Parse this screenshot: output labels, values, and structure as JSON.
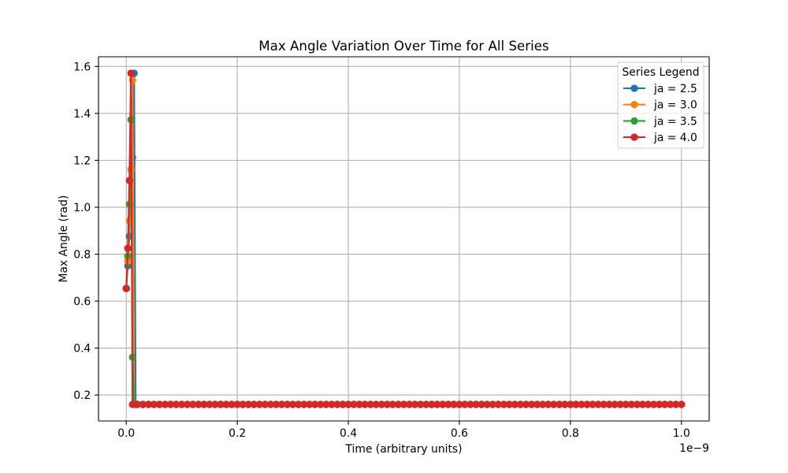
{
  "chart_data": {
    "type": "line",
    "title": "Max Angle Variation Over Time for All Series",
    "xlabel": "Time (arbitrary units)",
    "ylabel": "Max Angle (rad)",
    "x_offset_label": "1e−9",
    "xlim": [
      -0.05,
      1.05
    ],
    "ylim": [
      0.0895,
      1.6413
    ],
    "xticks": [
      0.0,
      0.2,
      0.4,
      0.6,
      0.8,
      1.0
    ],
    "xtick_labels": [
      "0.0",
      "0.2",
      "0.4",
      "0.6",
      "0.8",
      "1.0"
    ],
    "yticks": [
      0.2,
      0.4,
      0.6,
      0.8,
      1.0,
      1.2,
      1.4,
      1.6
    ],
    "ytick_labels": [
      "0.2",
      "0.4",
      "0.6",
      "0.8",
      "1.0",
      "1.2",
      "1.4",
      "1.6"
    ],
    "grid": true,
    "marker": "circle",
    "legend_title": "Series Legend",
    "legend_position": "upper right",
    "series": [
      {
        "name": "ja = 2.5",
        "color": "#1f77b4",
        "x": [
          0,
          0.0028,
          0.0057,
          0.0085,
          0.0113,
          0.0142,
          0.017,
          0.02,
          0.03,
          0.04,
          0.05,
          0.06,
          0.07,
          0.08,
          0.09,
          0.1,
          0.11,
          0.12,
          0.13,
          0.14,
          0.15,
          0.16,
          0.17,
          0.18,
          0.19,
          0.2,
          0.21,
          0.22,
          0.23,
          0.24,
          0.25,
          0.26,
          0.27,
          0.28,
          0.29,
          0.3,
          0.31,
          0.32,
          0.33,
          0.34,
          0.35,
          0.36,
          0.37,
          0.38,
          0.39,
          0.4,
          0.41,
          0.42,
          0.43,
          0.44,
          0.45,
          0.46,
          0.47,
          0.48,
          0.49,
          0.5,
          0.51,
          0.52,
          0.53,
          0.54,
          0.55,
          0.56,
          0.57,
          0.58,
          0.59,
          0.6,
          0.61,
          0.62,
          0.63,
          0.64,
          0.65,
          0.66,
          0.67,
          0.68,
          0.69,
          0.7,
          0.71,
          0.72,
          0.73,
          0.74,
          0.75,
          0.76,
          0.77,
          0.78,
          0.79,
          0.8,
          0.81,
          0.82,
          0.83,
          0.84,
          0.85,
          0.86,
          0.87,
          0.88,
          0.89,
          0.9,
          0.91,
          0.92,
          0.93,
          0.94,
          0.95,
          0.96,
          0.97,
          0.98,
          0.99,
          1.0
        ],
        "y": [
          0.654,
          0.75,
          0.876,
          1.114,
          1.212,
          1.571,
          0.16,
          0.16,
          0.16,
          0.16,
          0.16,
          0.16,
          0.16,
          0.16,
          0.16,
          0.16,
          0.16,
          0.16,
          0.16,
          0.16,
          0.16,
          0.16,
          0.16,
          0.16,
          0.16,
          0.16,
          0.16,
          0.16,
          0.16,
          0.16,
          0.16,
          0.16,
          0.16,
          0.16,
          0.16,
          0.16,
          0.16,
          0.16,
          0.16,
          0.16,
          0.16,
          0.16,
          0.16,
          0.16,
          0.16,
          0.16,
          0.16,
          0.16,
          0.16,
          0.16,
          0.16,
          0.16,
          0.16,
          0.16,
          0.16,
          0.16,
          0.16,
          0.16,
          0.16,
          0.16,
          0.16,
          0.16,
          0.16,
          0.16,
          0.16,
          0.16,
          0.16,
          0.16,
          0.16,
          0.16,
          0.16,
          0.16,
          0.16,
          0.16,
          0.16,
          0.16,
          0.16,
          0.16,
          0.16,
          0.16,
          0.16,
          0.16,
          0.16,
          0.16,
          0.16,
          0.16,
          0.16,
          0.16,
          0.16,
          0.16,
          0.16,
          0.16,
          0.16,
          0.16,
          0.16,
          0.16,
          0.16,
          0.16,
          0.16,
          0.16,
          0.16,
          0.16,
          0.16,
          0.16,
          0.16,
          0.16
        ]
      },
      {
        "name": "ja = 3.0",
        "color": "#ff7f0e",
        "x": [
          0,
          0.0028,
          0.0057,
          0.0085,
          0.0113,
          0.0142,
          0.02,
          0.03,
          0.04,
          0.05,
          0.06,
          0.07,
          0.08,
          0.09,
          0.1,
          0.11,
          0.12,
          0.13,
          0.14,
          0.15,
          0.16,
          0.17,
          0.18,
          0.19,
          0.2,
          0.21,
          0.22,
          0.23,
          0.24,
          0.25,
          0.26,
          0.27,
          0.28,
          0.29,
          0.3,
          0.31,
          0.32,
          0.33,
          0.34,
          0.35,
          0.36,
          0.37,
          0.38,
          0.39,
          0.4,
          0.41,
          0.42,
          0.43,
          0.44,
          0.45,
          0.46,
          0.47,
          0.48,
          0.49,
          0.5,
          0.51,
          0.52,
          0.53,
          0.54,
          0.55,
          0.56,
          0.57,
          0.58,
          0.59,
          0.6,
          0.61,
          0.62,
          0.63,
          0.64,
          0.65,
          0.66,
          0.67,
          0.68,
          0.69,
          0.7,
          0.71,
          0.72,
          0.73,
          0.74,
          0.75,
          0.76,
          0.77,
          0.78,
          0.79,
          0.8,
          0.81,
          0.82,
          0.83,
          0.84,
          0.85,
          0.86,
          0.87,
          0.88,
          0.89,
          0.9,
          0.91,
          0.92,
          0.93,
          0.94,
          0.95,
          0.96,
          0.97,
          0.98,
          0.99,
          1.0
        ],
        "y": [
          0.654,
          0.771,
          0.943,
          1.161,
          1.541,
          0.16,
          0.16,
          0.16,
          0.16,
          0.16,
          0.16,
          0.16,
          0.16,
          0.16,
          0.16,
          0.16,
          0.16,
          0.16,
          0.16,
          0.16,
          0.16,
          0.16,
          0.16,
          0.16,
          0.16,
          0.16,
          0.16,
          0.16,
          0.16,
          0.16,
          0.16,
          0.16,
          0.16,
          0.16,
          0.16,
          0.16,
          0.16,
          0.16,
          0.16,
          0.16,
          0.16,
          0.16,
          0.16,
          0.16,
          0.16,
          0.16,
          0.16,
          0.16,
          0.16,
          0.16,
          0.16,
          0.16,
          0.16,
          0.16,
          0.16,
          0.16,
          0.16,
          0.16,
          0.16,
          0.16,
          0.16,
          0.16,
          0.16,
          0.16,
          0.16,
          0.16,
          0.16,
          0.16,
          0.16,
          0.16,
          0.16,
          0.16,
          0.16,
          0.16,
          0.16,
          0.16,
          0.16,
          0.16,
          0.16,
          0.16,
          0.16,
          0.16,
          0.16,
          0.16,
          0.16,
          0.16,
          0.16,
          0.16,
          0.16,
          0.16,
          0.16,
          0.16,
          0.16,
          0.16,
          0.16,
          0.16,
          0.16,
          0.16,
          0.16,
          0.16,
          0.16,
          0.16,
          0.16,
          0.16,
          0.16
        ]
      },
      {
        "name": "ja = 3.5",
        "color": "#2ca02c",
        "x": [
          0,
          0.0028,
          0.0057,
          0.0085,
          0.0113,
          0.0142,
          0.02,
          0.03,
          0.04,
          0.05,
          0.06,
          0.07,
          0.08,
          0.09,
          0.1,
          0.11,
          0.12,
          0.13,
          0.14,
          0.15,
          0.16,
          0.17,
          0.18,
          0.19,
          0.2,
          0.21,
          0.22,
          0.23,
          0.24,
          0.25,
          0.26,
          0.27,
          0.28,
          0.29,
          0.3,
          0.31,
          0.32,
          0.33,
          0.34,
          0.35,
          0.36,
          0.37,
          0.38,
          0.39,
          0.4,
          0.41,
          0.42,
          0.43,
          0.44,
          0.45,
          0.46,
          0.47,
          0.48,
          0.49,
          0.5,
          0.51,
          0.52,
          0.53,
          0.54,
          0.55,
          0.56,
          0.57,
          0.58,
          0.59,
          0.6,
          0.61,
          0.62,
          0.63,
          0.64,
          0.65,
          0.66,
          0.67,
          0.68,
          0.69,
          0.7,
          0.71,
          0.72,
          0.73,
          0.74,
          0.75,
          0.76,
          0.77,
          0.78,
          0.79,
          0.8,
          0.81,
          0.82,
          0.83,
          0.84,
          0.85,
          0.86,
          0.87,
          0.88,
          0.89,
          0.9,
          0.91,
          0.92,
          0.93,
          0.94,
          0.95,
          0.96,
          0.97,
          0.98,
          0.99,
          1.0
        ],
        "y": [
          0.654,
          0.792,
          1.013,
          1.373,
          0.361,
          0.16,
          0.16,
          0.16,
          0.16,
          0.16,
          0.16,
          0.16,
          0.16,
          0.16,
          0.16,
          0.16,
          0.16,
          0.16,
          0.16,
          0.16,
          0.16,
          0.16,
          0.16,
          0.16,
          0.16,
          0.16,
          0.16,
          0.16,
          0.16,
          0.16,
          0.16,
          0.16,
          0.16,
          0.16,
          0.16,
          0.16,
          0.16,
          0.16,
          0.16,
          0.16,
          0.16,
          0.16,
          0.16,
          0.16,
          0.16,
          0.16,
          0.16,
          0.16,
          0.16,
          0.16,
          0.16,
          0.16,
          0.16,
          0.16,
          0.16,
          0.16,
          0.16,
          0.16,
          0.16,
          0.16,
          0.16,
          0.16,
          0.16,
          0.16,
          0.16,
          0.16,
          0.16,
          0.16,
          0.16,
          0.16,
          0.16,
          0.16,
          0.16,
          0.16,
          0.16,
          0.16,
          0.16,
          0.16,
          0.16,
          0.16,
          0.16,
          0.16,
          0.16,
          0.16,
          0.16,
          0.16,
          0.16,
          0.16,
          0.16,
          0.16,
          0.16,
          0.16,
          0.16,
          0.16,
          0.16,
          0.16,
          0.16,
          0.16,
          0.16,
          0.16,
          0.16,
          0.16,
          0.16,
          0.16,
          0.16
        ]
      },
      {
        "name": "ja = 4.0",
        "color": "#d62728",
        "x": [
          0,
          0.0028,
          0.0057,
          0.0085,
          0.0113,
          0.02,
          0.03,
          0.04,
          0.05,
          0.06,
          0.07,
          0.08,
          0.09,
          0.1,
          0.11,
          0.12,
          0.13,
          0.14,
          0.15,
          0.16,
          0.17,
          0.18,
          0.19,
          0.2,
          0.21,
          0.22,
          0.23,
          0.24,
          0.25,
          0.26,
          0.27,
          0.28,
          0.29,
          0.3,
          0.31,
          0.32,
          0.33,
          0.34,
          0.35,
          0.36,
          0.37,
          0.38,
          0.39,
          0.4,
          0.41,
          0.42,
          0.43,
          0.44,
          0.45,
          0.46,
          0.47,
          0.48,
          0.49,
          0.5,
          0.51,
          0.52,
          0.53,
          0.54,
          0.55,
          0.56,
          0.57,
          0.58,
          0.59,
          0.6,
          0.61,
          0.62,
          0.63,
          0.64,
          0.65,
          0.66,
          0.67,
          0.68,
          0.69,
          0.7,
          0.71,
          0.72,
          0.73,
          0.74,
          0.75,
          0.76,
          0.77,
          0.78,
          0.79,
          0.8,
          0.81,
          0.82,
          0.83,
          0.84,
          0.85,
          0.86,
          0.87,
          0.88,
          0.89,
          0.9,
          0.91,
          0.92,
          0.93,
          0.94,
          0.95,
          0.96,
          0.97,
          0.98,
          0.99,
          1.0
        ],
        "y": [
          0.654,
          0.825,
          1.114,
          1.571,
          0.16,
          0.16,
          0.16,
          0.16,
          0.16,
          0.16,
          0.16,
          0.16,
          0.16,
          0.16,
          0.16,
          0.16,
          0.16,
          0.16,
          0.16,
          0.16,
          0.16,
          0.16,
          0.16,
          0.16,
          0.16,
          0.16,
          0.16,
          0.16,
          0.16,
          0.16,
          0.16,
          0.16,
          0.16,
          0.16,
          0.16,
          0.16,
          0.16,
          0.16,
          0.16,
          0.16,
          0.16,
          0.16,
          0.16,
          0.16,
          0.16,
          0.16,
          0.16,
          0.16,
          0.16,
          0.16,
          0.16,
          0.16,
          0.16,
          0.16,
          0.16,
          0.16,
          0.16,
          0.16,
          0.16,
          0.16,
          0.16,
          0.16,
          0.16,
          0.16,
          0.16,
          0.16,
          0.16,
          0.16,
          0.16,
          0.16,
          0.16,
          0.16,
          0.16,
          0.16,
          0.16,
          0.16,
          0.16,
          0.16,
          0.16,
          0.16,
          0.16,
          0.16,
          0.16,
          0.16,
          0.16,
          0.16,
          0.16,
          0.16,
          0.16,
          0.16,
          0.16,
          0.16,
          0.16,
          0.16,
          0.16,
          0.16,
          0.16,
          0.16,
          0.16,
          0.16,
          0.16,
          0.16,
          0.16,
          0.16
        ]
      }
    ]
  }
}
